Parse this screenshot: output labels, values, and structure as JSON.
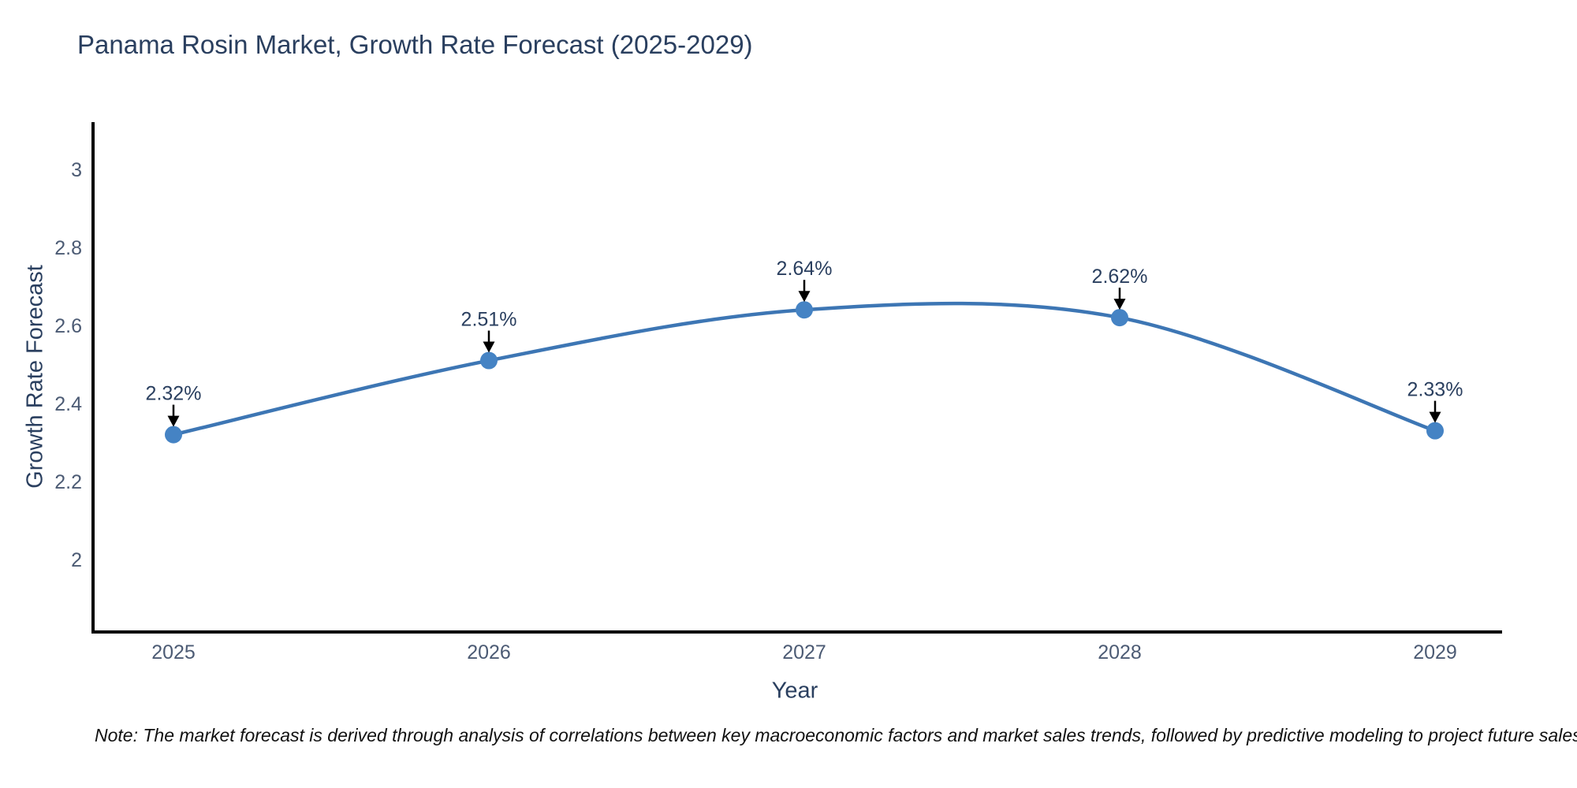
{
  "chart_data": {
    "type": "line",
    "title": "Panama Rosin Market, Growth Rate Forecast (2025-2029)",
    "xlabel": "Year",
    "ylabel": "Growth Rate Forecast",
    "x": [
      2025,
      2026,
      2027,
      2028,
      2029
    ],
    "y": [
      2.32,
      2.51,
      2.64,
      2.62,
      2.33
    ],
    "point_labels": [
      "2.32%",
      "2.51%",
      "2.64%",
      "2.62%",
      "2.33%"
    ],
    "xticks": [
      "2025",
      "2026",
      "2027",
      "2028",
      "2029"
    ],
    "yticks": [
      3,
      2.8,
      2.6,
      2.4,
      2.2,
      2
    ],
    "ylim": [
      1.81,
      3.13
    ],
    "line_shape": "spline",
    "grid": false,
    "legend_position": "none",
    "colors": {
      "line": "#3d76b4",
      "marker": "#4583c4",
      "arrow": "#000000",
      "axis": "#000000",
      "heading_text": "#2a3f5f",
      "tick_text": "#4c5b74",
      "note_text": "#111111"
    },
    "note": "Note: The market forecast is derived through analysis of correlations between key macroeconomic factors and market sales trends, followed by predictive modeling to project future sales performance."
  }
}
